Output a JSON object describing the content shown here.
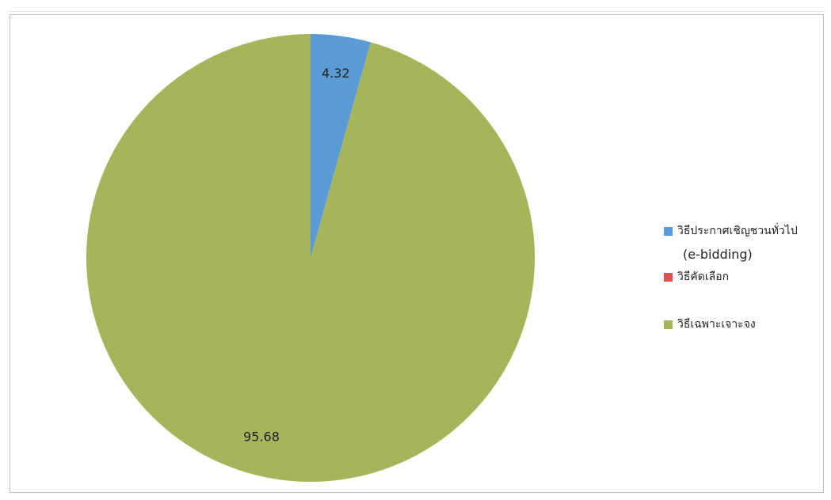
{
  "chart_data": {
    "type": "pie",
    "categories": [
      "วิธีประกาศเชิญชวนทั่วไป (e-bidding)",
      "วิธีคัดเลือก",
      "วิธีเฉพาะเจาะจง"
    ],
    "values": [
      4.32,
      0,
      95.68
    ],
    "data_labels": [
      "4.32",
      "",
      "95.68"
    ],
    "colors": [
      "#5b9bd5",
      "#d9534f",
      "#a7b55a"
    ],
    "start_angle_deg": 0,
    "direction": "clockwise",
    "legend_position": "right"
  },
  "legend": {
    "items": [
      {
        "label": "วิธีประกาศเชิญชวนทั่วไป",
        "sublabel": "(e-bidding)",
        "color": "#5b9bd5"
      },
      {
        "label": "วิธีคัดเลือก",
        "color": "#d9534f"
      },
      {
        "label": "วิธีเฉพาะเจาะจง",
        "color": "#a7b55a"
      }
    ]
  }
}
